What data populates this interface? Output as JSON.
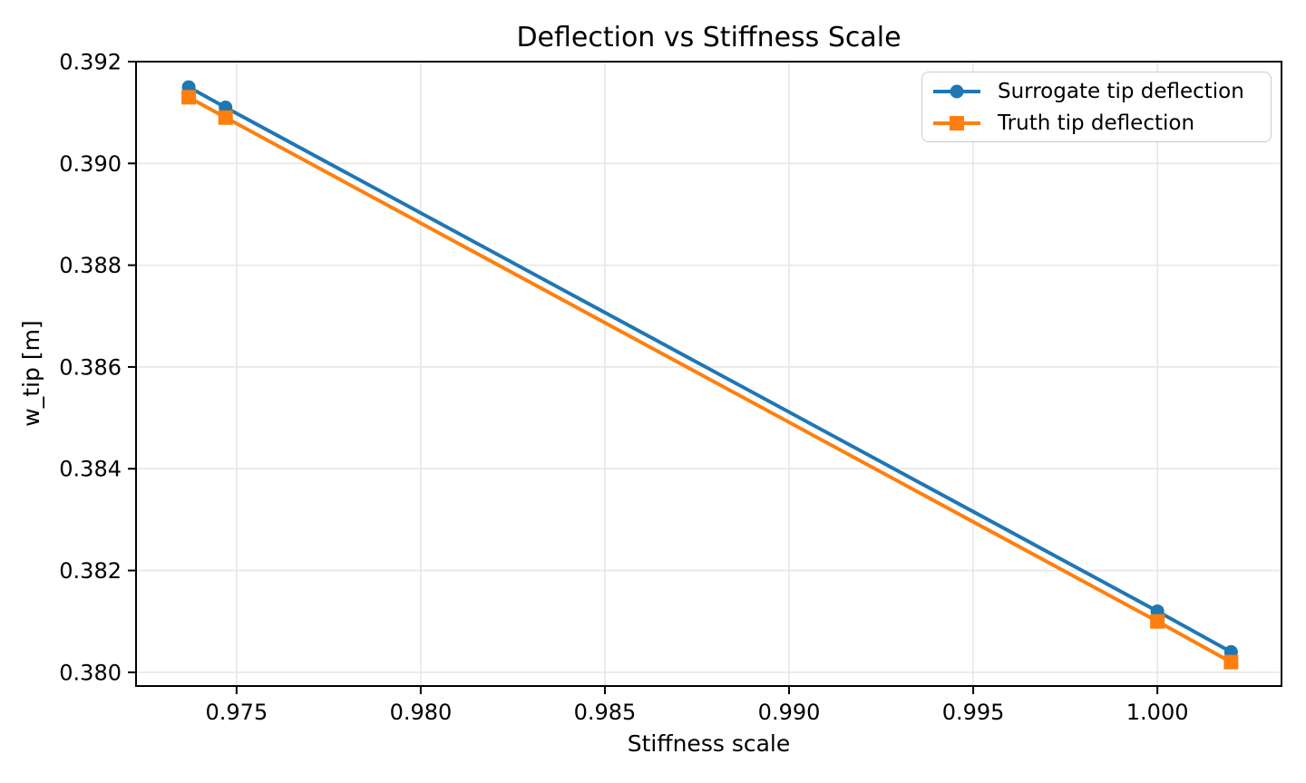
{
  "chart_data": {
    "type": "line",
    "title": "Deflection vs Stiffness Scale",
    "xlabel": "Stiffness scale",
    "ylabel": "w_tip [m]",
    "x": [
      0.9737,
      0.9747,
      1.0,
      1.002
    ],
    "series": [
      {
        "name": "Surrogate tip deflection",
        "color": "#1f77b4",
        "marker": "circle",
        "values": [
          0.3915,
          0.3911,
          0.3812,
          0.3804
        ]
      },
      {
        "name": "Truth tip deflection",
        "color": "#ff7f0e",
        "marker": "square",
        "values": [
          0.3913,
          0.3909,
          0.381,
          0.3802
        ]
      }
    ],
    "xticks": {
      "values": [
        0.975,
        0.98,
        0.985,
        0.99,
        0.995,
        1.0
      ],
      "labels": [
        "0.975",
        "0.980",
        "0.985",
        "0.990",
        "0.995",
        "1.000"
      ]
    },
    "yticks": {
      "values": [
        0.392,
        0.39,
        0.388,
        0.386,
        0.384,
        0.382,
        0.38
      ],
      "labels": [
        "0.392",
        "0.390",
        "0.388",
        "0.386",
        "0.384",
        "0.382",
        "0.380"
      ]
    },
    "xlim": [
      0.97227,
      1.00337
    ],
    "ylim": [
      0.37973,
      0.392
    ],
    "grid": true,
    "grid_color": "#e7e7e7",
    "axis_color": "#000000",
    "legend_position": "upper right"
  }
}
